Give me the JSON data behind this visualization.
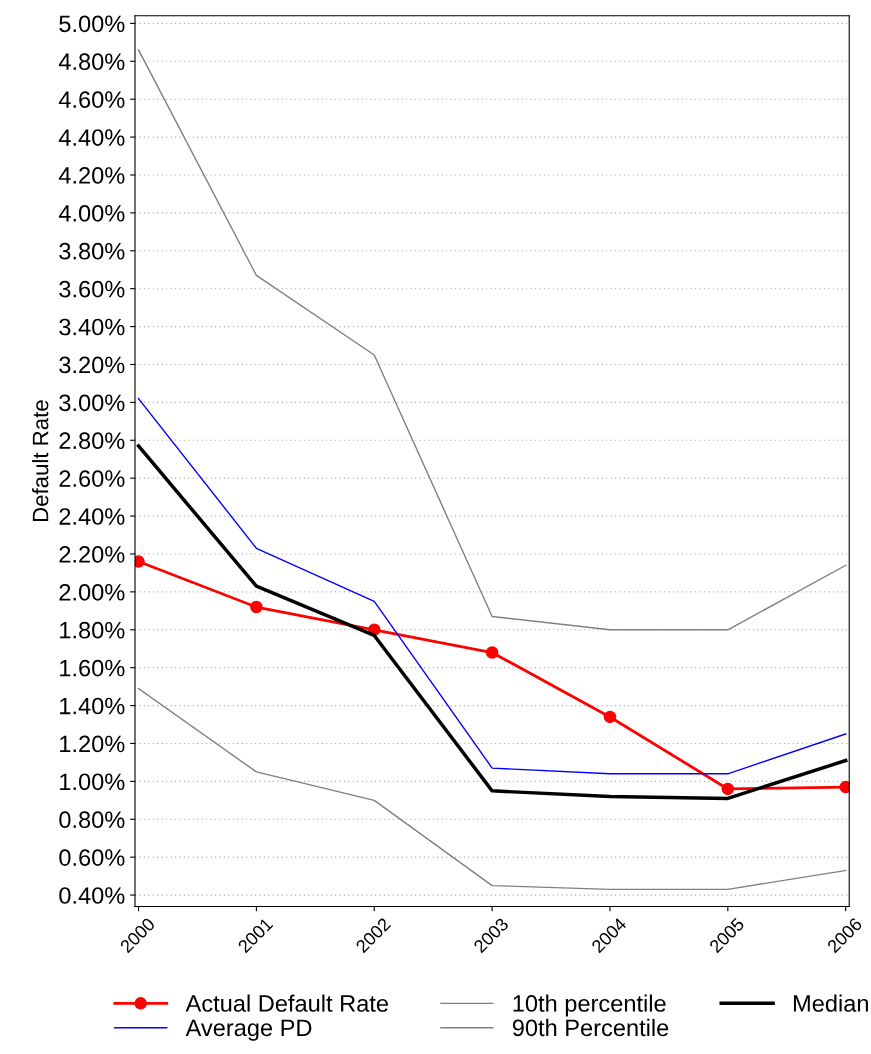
{
  "chart_data": {
    "type": "line",
    "ylabel": "Default Rate",
    "categories": [
      "2000",
      "2001",
      "2002",
      "2003",
      "2004",
      "2005",
      "2006"
    ],
    "series": [
      {
        "name": "Actual Default Rate",
        "color": "#ff0000",
        "marker": "circle",
        "values": [
          2.16,
          1.92,
          1.8,
          1.68,
          1.34,
          0.96,
          0.97
        ]
      },
      {
        "name": "Average PD",
        "color": "#0000ff",
        "values": [
          3.02,
          2.23,
          1.95,
          1.07,
          1.04,
          1.04,
          1.25
        ]
      },
      {
        "name": "10th percentile",
        "color": "#808080",
        "values": [
          1.49,
          1.05,
          0.9,
          0.45,
          0.43,
          0.43,
          0.53
        ]
      },
      {
        "name": "90th Percentile",
        "color": "#808080",
        "values": [
          4.86,
          3.67,
          3.25,
          1.87,
          1.8,
          1.8,
          2.14
        ]
      },
      {
        "name": "Median",
        "color": "#000000",
        "values": [
          2.77,
          2.03,
          1.77,
          0.95,
          0.92,
          0.91,
          1.11
        ]
      }
    ],
    "ylim": [
      0.34,
      5.04
    ],
    "yticks": [
      {
        "value": 0.4,
        "label": "0.40%"
      },
      {
        "value": 0.6,
        "label": "0.60%"
      },
      {
        "value": 0.8,
        "label": "0.80%"
      },
      {
        "value": 1.0,
        "label": "1.00%"
      },
      {
        "value": 1.2,
        "label": "1.20%"
      },
      {
        "value": 1.4,
        "label": "1.40%"
      },
      {
        "value": 1.6,
        "label": "1.60%"
      },
      {
        "value": 1.8,
        "label": "1.80%"
      },
      {
        "value": 2.0,
        "label": "2.00%"
      },
      {
        "value": 2.2,
        "label": "2.20%"
      },
      {
        "value": 2.4,
        "label": "2.40%"
      },
      {
        "value": 2.6,
        "label": "2.60%"
      },
      {
        "value": 2.8,
        "label": "2.80%"
      },
      {
        "value": 3.0,
        "label": "3.00%"
      },
      {
        "value": 3.2,
        "label": "3.20%"
      },
      {
        "value": 3.4,
        "label": "3.40%"
      },
      {
        "value": 3.6,
        "label": "3.60%"
      },
      {
        "value": 3.8,
        "label": "3.80%"
      },
      {
        "value": 4.0,
        "label": "4.00%"
      },
      {
        "value": 4.2,
        "label": "4.20%"
      },
      {
        "value": 4.4,
        "label": "4.40%"
      },
      {
        "value": 4.6,
        "label": "4.60%"
      },
      {
        "value": 4.8,
        "label": "4.80%"
      },
      {
        "value": 5.0,
        "label": "5.00%"
      }
    ],
    "grid": "y",
    "legend": "bottom",
    "line_style": "solid"
  }
}
